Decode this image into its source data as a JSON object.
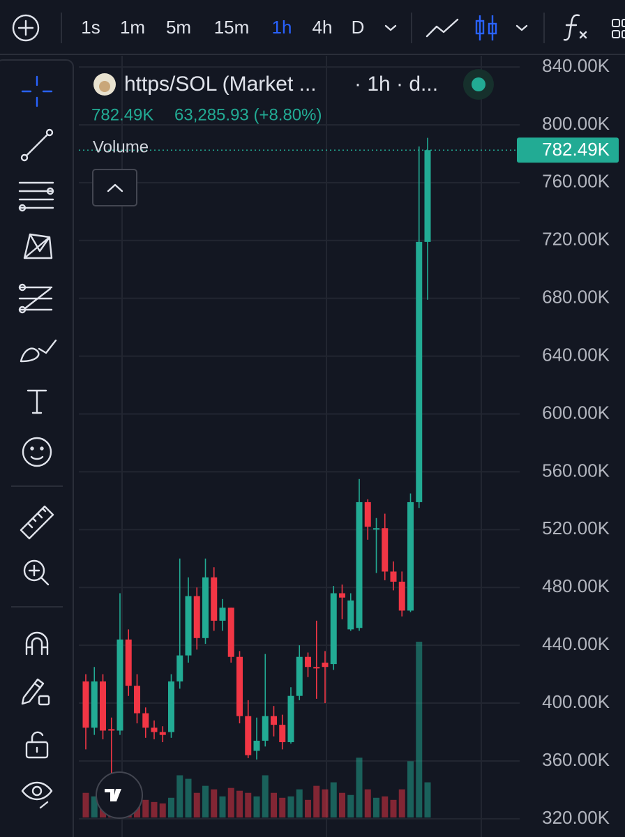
{
  "toolbar": {
    "intervals": [
      "1s",
      "1m",
      "5m",
      "15m",
      "1h",
      "4h",
      "D"
    ],
    "active_interval": "1h"
  },
  "legend": {
    "symbol": "https/SOL (Market ...",
    "interval": "· 1h · d...",
    "change": "63,285.93 (+8.80%)",
    "volume_label": "Volume"
  },
  "chart_data": {
    "type": "candlestick",
    "ohlc": [
      [
        415000,
        420000,
        368000,
        383000
      ],
      [
        383000,
        425000,
        378000,
        415000
      ],
      [
        415000,
        420000,
        375000,
        381000
      ],
      [
        382000,
        390000,
        340000,
        381000
      ],
      [
        381000,
        476000,
        378000,
        444000
      ],
      [
        444000,
        451000,
        405000,
        412000
      ],
      [
        412000,
        420000,
        386000,
        393000
      ],
      [
        393000,
        397000,
        376000,
        383000
      ],
      [
        383000,
        388000,
        375000,
        380000
      ],
      [
        380000,
        384000,
        373000,
        378000
      ],
      [
        380000,
        420000,
        376000,
        415000
      ],
      [
        415000,
        500000,
        410000,
        433000
      ],
      [
        433000,
        487000,
        428000,
        474000
      ],
      [
        474000,
        480000,
        437000,
        445000
      ],
      [
        445000,
        500000,
        441000,
        487000
      ],
      [
        487000,
        494000,
        450000,
        457000
      ],
      [
        457000,
        472000,
        450000,
        466000
      ],
      [
        466000,
        466000,
        428000,
        432000
      ],
      [
        432000,
        436000,
        386000,
        391000
      ],
      [
        391000,
        402000,
        362000,
        364000
      ],
      [
        367000,
        390000,
        361000,
        374000
      ],
      [
        374000,
        434000,
        370000,
        391000
      ],
      [
        391000,
        398000,
        377000,
        385000
      ],
      [
        385000,
        392000,
        368000,
        373000
      ],
      [
        373000,
        411000,
        372000,
        405000
      ],
      [
        405000,
        440000,
        402000,
        432000
      ],
      [
        432000,
        435000,
        418000,
        425000
      ],
      [
        425000,
        457000,
        403000,
        424000
      ],
      [
        428000,
        436000,
        400000,
        425000
      ],
      [
        427000,
        481000,
        423000,
        476000
      ],
      [
        476000,
        482000,
        458000,
        473000
      ],
      [
        451000,
        476000,
        450000,
        471000
      ],
      [
        452000,
        555000,
        450000,
        539000
      ],
      [
        539000,
        541000,
        513000,
        522000
      ],
      [
        520000,
        528000,
        490000,
        521000
      ],
      [
        521000,
        531000,
        485000,
        491000
      ],
      [
        491000,
        498000,
        478000,
        484000
      ],
      [
        484000,
        491000,
        460000,
        464000
      ],
      [
        464000,
        545000,
        463000,
        539000
      ],
      [
        539000,
        785000,
        535000,
        719000
      ],
      [
        719000,
        791000,
        679000,
        782490
      ]
    ],
    "volume": [
      35,
      30,
      40,
      25,
      30,
      38,
      30,
      25,
      22,
      20,
      28,
      60,
      55,
      35,
      45,
      40,
      30,
      42,
      38,
      35,
      30,
      60,
      35,
      28,
      30,
      40,
      25,
      45,
      40,
      50,
      35,
      32,
      85,
      40,
      28,
      30,
      25,
      40,
      80,
      250,
      50
    ],
    "ylim": [
      307400,
      848700
    ],
    "yticks": [
      {
        "value": 840000,
        "label": "840.00K"
      },
      {
        "value": 800000,
        "label": "800.00K"
      },
      {
        "value": 760000,
        "label": "760.00K"
      },
      {
        "value": 720000,
        "label": "720.00K"
      },
      {
        "value": 680000,
        "label": "680.00K"
      },
      {
        "value": 640000,
        "label": "640.00K"
      },
      {
        "value": 600000,
        "label": "600.00K"
      },
      {
        "value": 560000,
        "label": "560.00K"
      },
      {
        "value": 520000,
        "label": "520.00K"
      },
      {
        "value": 480000,
        "label": "480.00K"
      },
      {
        "value": 440000,
        "label": "440.00K"
      },
      {
        "value": 400000,
        "label": "400.00K"
      },
      {
        "value": 360000,
        "label": "360.00K"
      },
      {
        "value": 320000,
        "label": "320.00K"
      }
    ],
    "last_price": {
      "value": 782490,
      "label": "782.49K"
    },
    "up_color": "#22ab94",
    "down_color": "#f23645",
    "grid": true
  }
}
